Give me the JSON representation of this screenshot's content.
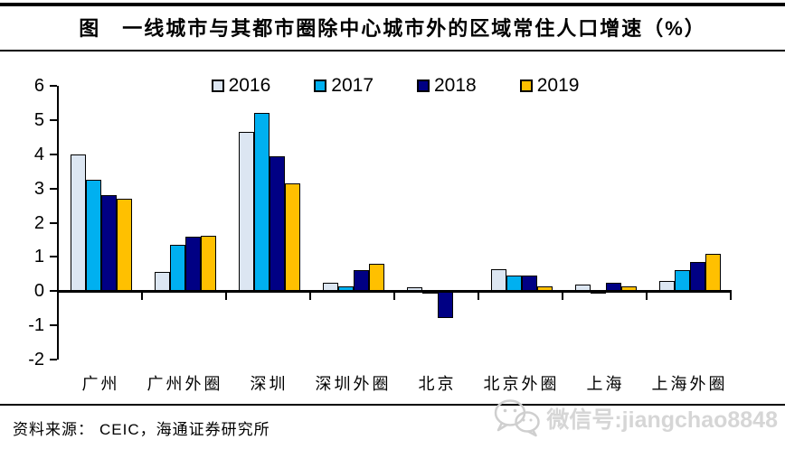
{
  "header": {
    "title": "图　一线城市与其都市圈除中心城市外的区域常住人口增速（%）"
  },
  "chart_data": {
    "type": "bar",
    "title": "一线城市与其都市圈除中心城市外的区域常住人口增速（%）",
    "categories": [
      "广州",
      "广州外圈",
      "深圳",
      "深圳外圈",
      "北京",
      "北京外圈",
      "上海",
      "上海外圈"
    ],
    "series": [
      {
        "name": "2016",
        "color": "#DCE6F2",
        "values": [
          4.0,
          0.55,
          4.65,
          0.25,
          0.1,
          0.65,
          0.2,
          0.3
        ]
      },
      {
        "name": "2017",
        "color": "#00B0F0",
        "values": [
          3.25,
          1.35,
          5.2,
          0.15,
          -0.1,
          0.45,
          -0.1,
          0.62
        ]
      },
      {
        "name": "2018",
        "color": "#000084",
        "values": [
          2.8,
          1.6,
          3.95,
          0.62,
          -0.8,
          0.45,
          0.25,
          0.85
        ]
      },
      {
        "name": "2019",
        "color": "#FFC000",
        "values": [
          2.7,
          1.63,
          3.15,
          0.8,
          -0.05,
          0.15,
          0.15,
          1.1
        ]
      }
    ],
    "ylim": [
      -2,
      6
    ],
    "yticks": [
      6,
      5,
      4,
      3,
      2,
      1,
      0,
      -1,
      -2
    ],
    "xlabel": "",
    "ylabel": "",
    "grid": false,
    "legend_position": "top",
    "axis_color": "#000000"
  },
  "footer": {
    "source_label": "资料来源：",
    "source_text": "CEIC，海通证券研究所"
  },
  "watermark": {
    "icon": "wechat-icon",
    "text": "微信号:jiangchao8848"
  }
}
